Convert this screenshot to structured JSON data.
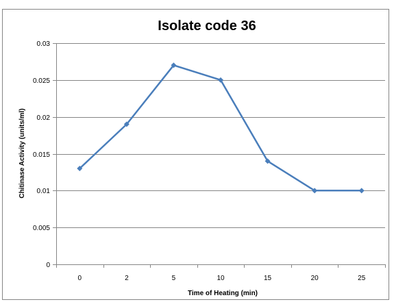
{
  "chart_data": {
    "type": "line",
    "title": "Isolate code 36",
    "xlabel": "Time of Heating (min)",
    "ylabel": "Chitinase Activity (units/ml)",
    "categories": [
      "0",
      "2",
      "5",
      "10",
      "15",
      "20",
      "25"
    ],
    "series": [
      {
        "values": [
          0.013,
          0.019,
          0.027,
          0.025,
          0.014,
          0.01,
          0.01
        ],
        "color": "#4A7EBB",
        "marker": "diamond"
      }
    ],
    "ylim": [
      0,
      0.03
    ],
    "yticks": [
      "0",
      "0.005",
      "0.01",
      "0.015",
      "0.02",
      "0.025",
      "0.03"
    ],
    "grid": true,
    "legend": "none",
    "gridline_color": "#868686"
  }
}
